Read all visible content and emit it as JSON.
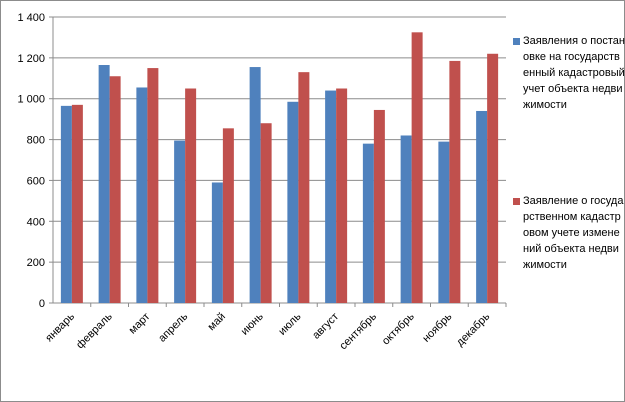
{
  "chart_data": {
    "type": "bar",
    "categories": [
      "январь",
      "февраль",
      "март",
      "апрель",
      "май",
      "июнь",
      "июль",
      "август",
      "сентябрь",
      "октябрь",
      "ноябрь",
      "декабрь"
    ],
    "series": [
      {
        "name": "Заявления о постановке на государственный кадастровый учет объекта недвижимости",
        "color": "#4f81bd",
        "values": [
          965,
          1165,
          1055,
          795,
          590,
          1155,
          985,
          1040,
          780,
          820,
          790,
          940
        ]
      },
      {
        "name": "Заявление о государственном кадастровом учете изменений объекта недвижимости",
        "color": "#c0504d",
        "values": [
          970,
          1110,
          1150,
          1050,
          855,
          880,
          1130,
          1050,
          945,
          1325,
          1185,
          1220
        ]
      }
    ],
    "y_ticks": [
      "0",
      "200",
      "400",
      "600",
      "800",
      "1 000",
      "1 200",
      "1 400"
    ],
    "ylim": [
      0,
      1400
    ],
    "grid": true,
    "legend_position": "right"
  }
}
